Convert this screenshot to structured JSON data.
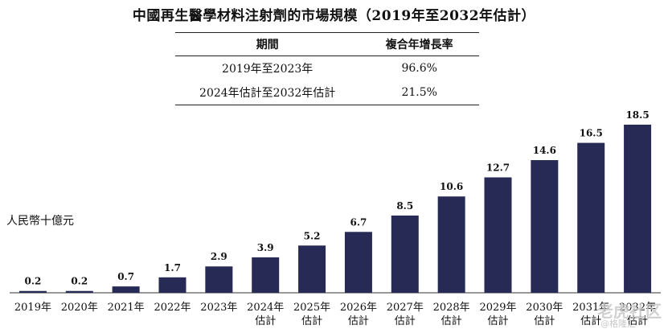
{
  "chart_data": {
    "type": "bar",
    "title": "中國再生醫學材料注射劑的市場規模（2019年至2032年估計）",
    "ylabel": "人民幣十億元",
    "xlabel": "",
    "categories": [
      [
        "2019年"
      ],
      [
        "2020年"
      ],
      [
        "2021年"
      ],
      [
        "2022年"
      ],
      [
        "2023年"
      ],
      [
        "2024年",
        "估計"
      ],
      [
        "2025年",
        "估計"
      ],
      [
        "2026年",
        "估計"
      ],
      [
        "2027年",
        "估計"
      ],
      [
        "2028年",
        "估計"
      ],
      [
        "2029年",
        "估計"
      ],
      [
        "2030年",
        "估計"
      ],
      [
        "2031年",
        "估計"
      ],
      [
        "2032年",
        "估計"
      ]
    ],
    "values": [
      0.2,
      0.2,
      0.7,
      1.7,
      2.9,
      3.9,
      5.2,
      6.7,
      8.5,
      10.6,
      12.7,
      14.6,
      16.5,
      18.5
    ],
    "value_labels": [
      "0.2",
      "0.2",
      "0.7",
      "1.7",
      "2.9",
      "3.9",
      "5.2",
      "6.7",
      "8.5",
      "10.6",
      "12.7",
      "14.6",
      "16.5",
      "18.5"
    ],
    "bar_color": "#272a54",
    "grid": false,
    "legend": "none"
  },
  "cagr_table": {
    "headers": [
      "期間",
      "複合年增長率"
    ],
    "rows": [
      [
        "2019年至2023年",
        "96.6%"
      ],
      [
        "2024年估計至2032年估計",
        "21.5%"
      ]
    ]
  },
  "watermark": {
    "brand": "老虎社区",
    "sub": "@格隆汇"
  }
}
